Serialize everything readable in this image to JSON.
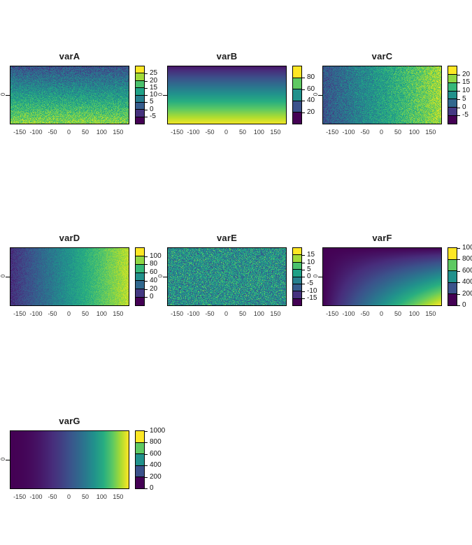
{
  "page": {
    "background": "#ffffff"
  },
  "chart_data": {
    "type": "heatmap",
    "layout": "3x3 grid of raster maps, 7 panels (varA-varG), viridis colormap, discrete legend at right of each panel",
    "colormap": "viridis",
    "colormap_stops": [
      "#440154",
      "#472D7B",
      "#3B528B",
      "#2C728E",
      "#21918C",
      "#28AE80",
      "#5EC962",
      "#ADDC30",
      "#FDE725"
    ],
    "x_axis": {
      "ticks": [
        -150,
        -100,
        -50,
        0,
        50,
        100,
        150
      ],
      "range": [
        -180,
        180
      ]
    },
    "y_axis": {
      "ticks": [
        0
      ],
      "range": [
        -90,
        90
      ]
    },
    "panels": [
      {
        "title": "varA",
        "row": 0,
        "col": 0,
        "pattern": "noisy vertical gradient, low (dark) at top to high (yellow-green) at bottom",
        "field": {
          "type": "gradient-y",
          "from": 0,
          "to": 23,
          "noise": 7
        },
        "domain": [
          -10,
          30
        ],
        "legend": {
          "labels": [
            25,
            20,
            15,
            10,
            5,
            0,
            -5
          ],
          "colors": [
            "#440154",
            "#46327E",
            "#365C8D",
            "#277F8E",
            "#1FA187",
            "#4AC16D",
            "#A0DA39",
            "#FDE725"
          ]
        }
      },
      {
        "title": "varB",
        "row": 0,
        "col": 1,
        "pattern": "smooth vertical gradient, dark purple top to yellow bottom",
        "field": {
          "type": "gradient-y",
          "from": 6,
          "to": 98,
          "noise": 0
        },
        "domain": [
          0,
          100
        ],
        "legend": {
          "labels": [
            80,
            60,
            40,
            20
          ],
          "colors": [
            "#440154",
            "#3B528B",
            "#21918C",
            "#5EC962",
            "#FDE725"
          ]
        }
      },
      {
        "title": "varC",
        "row": 0,
        "col": 2,
        "pattern": "noisy horizontal gradient, dark blue left to yellow-green right",
        "field": {
          "type": "gradient-x",
          "from": -1,
          "to": 20,
          "noise": 6
        },
        "domain": [
          -10,
          25
        ],
        "legend": {
          "labels": [
            20,
            15,
            10,
            5,
            0,
            -5
          ],
          "colors": [
            "#440154",
            "#443983",
            "#31688E",
            "#21918C",
            "#35B779",
            "#90D743",
            "#FDE725"
          ]
        }
      },
      {
        "title": "varD",
        "row": 1,
        "col": 0,
        "pattern": "noisy horizontal gradient, dark purple left to yellow right",
        "field": {
          "type": "gradient-x",
          "from": -2,
          "to": 106,
          "noise": 12
        },
        "domain": [
          -20,
          120
        ],
        "legend": {
          "labels": [
            100,
            80,
            60,
            40,
            20,
            0
          ],
          "colors": [
            "#440154",
            "#443983",
            "#31688E",
            "#21918C",
            "#35B779",
            "#90D743",
            "#FDE725"
          ]
        }
      },
      {
        "title": "varE",
        "row": 1,
        "col": 1,
        "pattern": "uniform random noise around zero, mostly teal with dark and bright speckles",
        "field": {
          "type": "noise",
          "base": 0,
          "noise": 13
        },
        "domain": [
          -20,
          20
        ],
        "legend": {
          "labels": [
            15,
            10,
            5,
            0,
            -5,
            -10,
            -15
          ],
          "colors": [
            "#440154",
            "#46327E",
            "#365C8D",
            "#277F8E",
            "#1FA187",
            "#4AC16D",
            "#A0DA39",
            "#FDE725"
          ]
        }
      },
      {
        "title": "varF",
        "row": 1,
        "col": 2,
        "pattern": "smooth 2D gradient, dark top-left, bright yellow bottom-right corner",
        "field": {
          "type": "product-xy",
          "max": 1000
        },
        "domain": [
          0,
          1000
        ],
        "legend": {
          "labels": [
            1000,
            800,
            600,
            400,
            200,
            0
          ],
          "colors": [
            "#440154",
            "#3B528B",
            "#21918C",
            "#5EC962",
            "#FDE725"
          ]
        }
      },
      {
        "title": "varG",
        "row": 2,
        "col": 0,
        "pattern": "smooth horizontal gradient (quadratic), dark purple left, yellow right edge",
        "field": {
          "type": "pow-x",
          "max": 1000,
          "exp": 2
        },
        "domain": [
          0,
          1000
        ],
        "legend": {
          "labels": [
            1000,
            800,
            600,
            400,
            200,
            0
          ],
          "colors": [
            "#440154",
            "#3B528B",
            "#21918C",
            "#5EC962",
            "#FDE725"
          ]
        }
      }
    ]
  }
}
